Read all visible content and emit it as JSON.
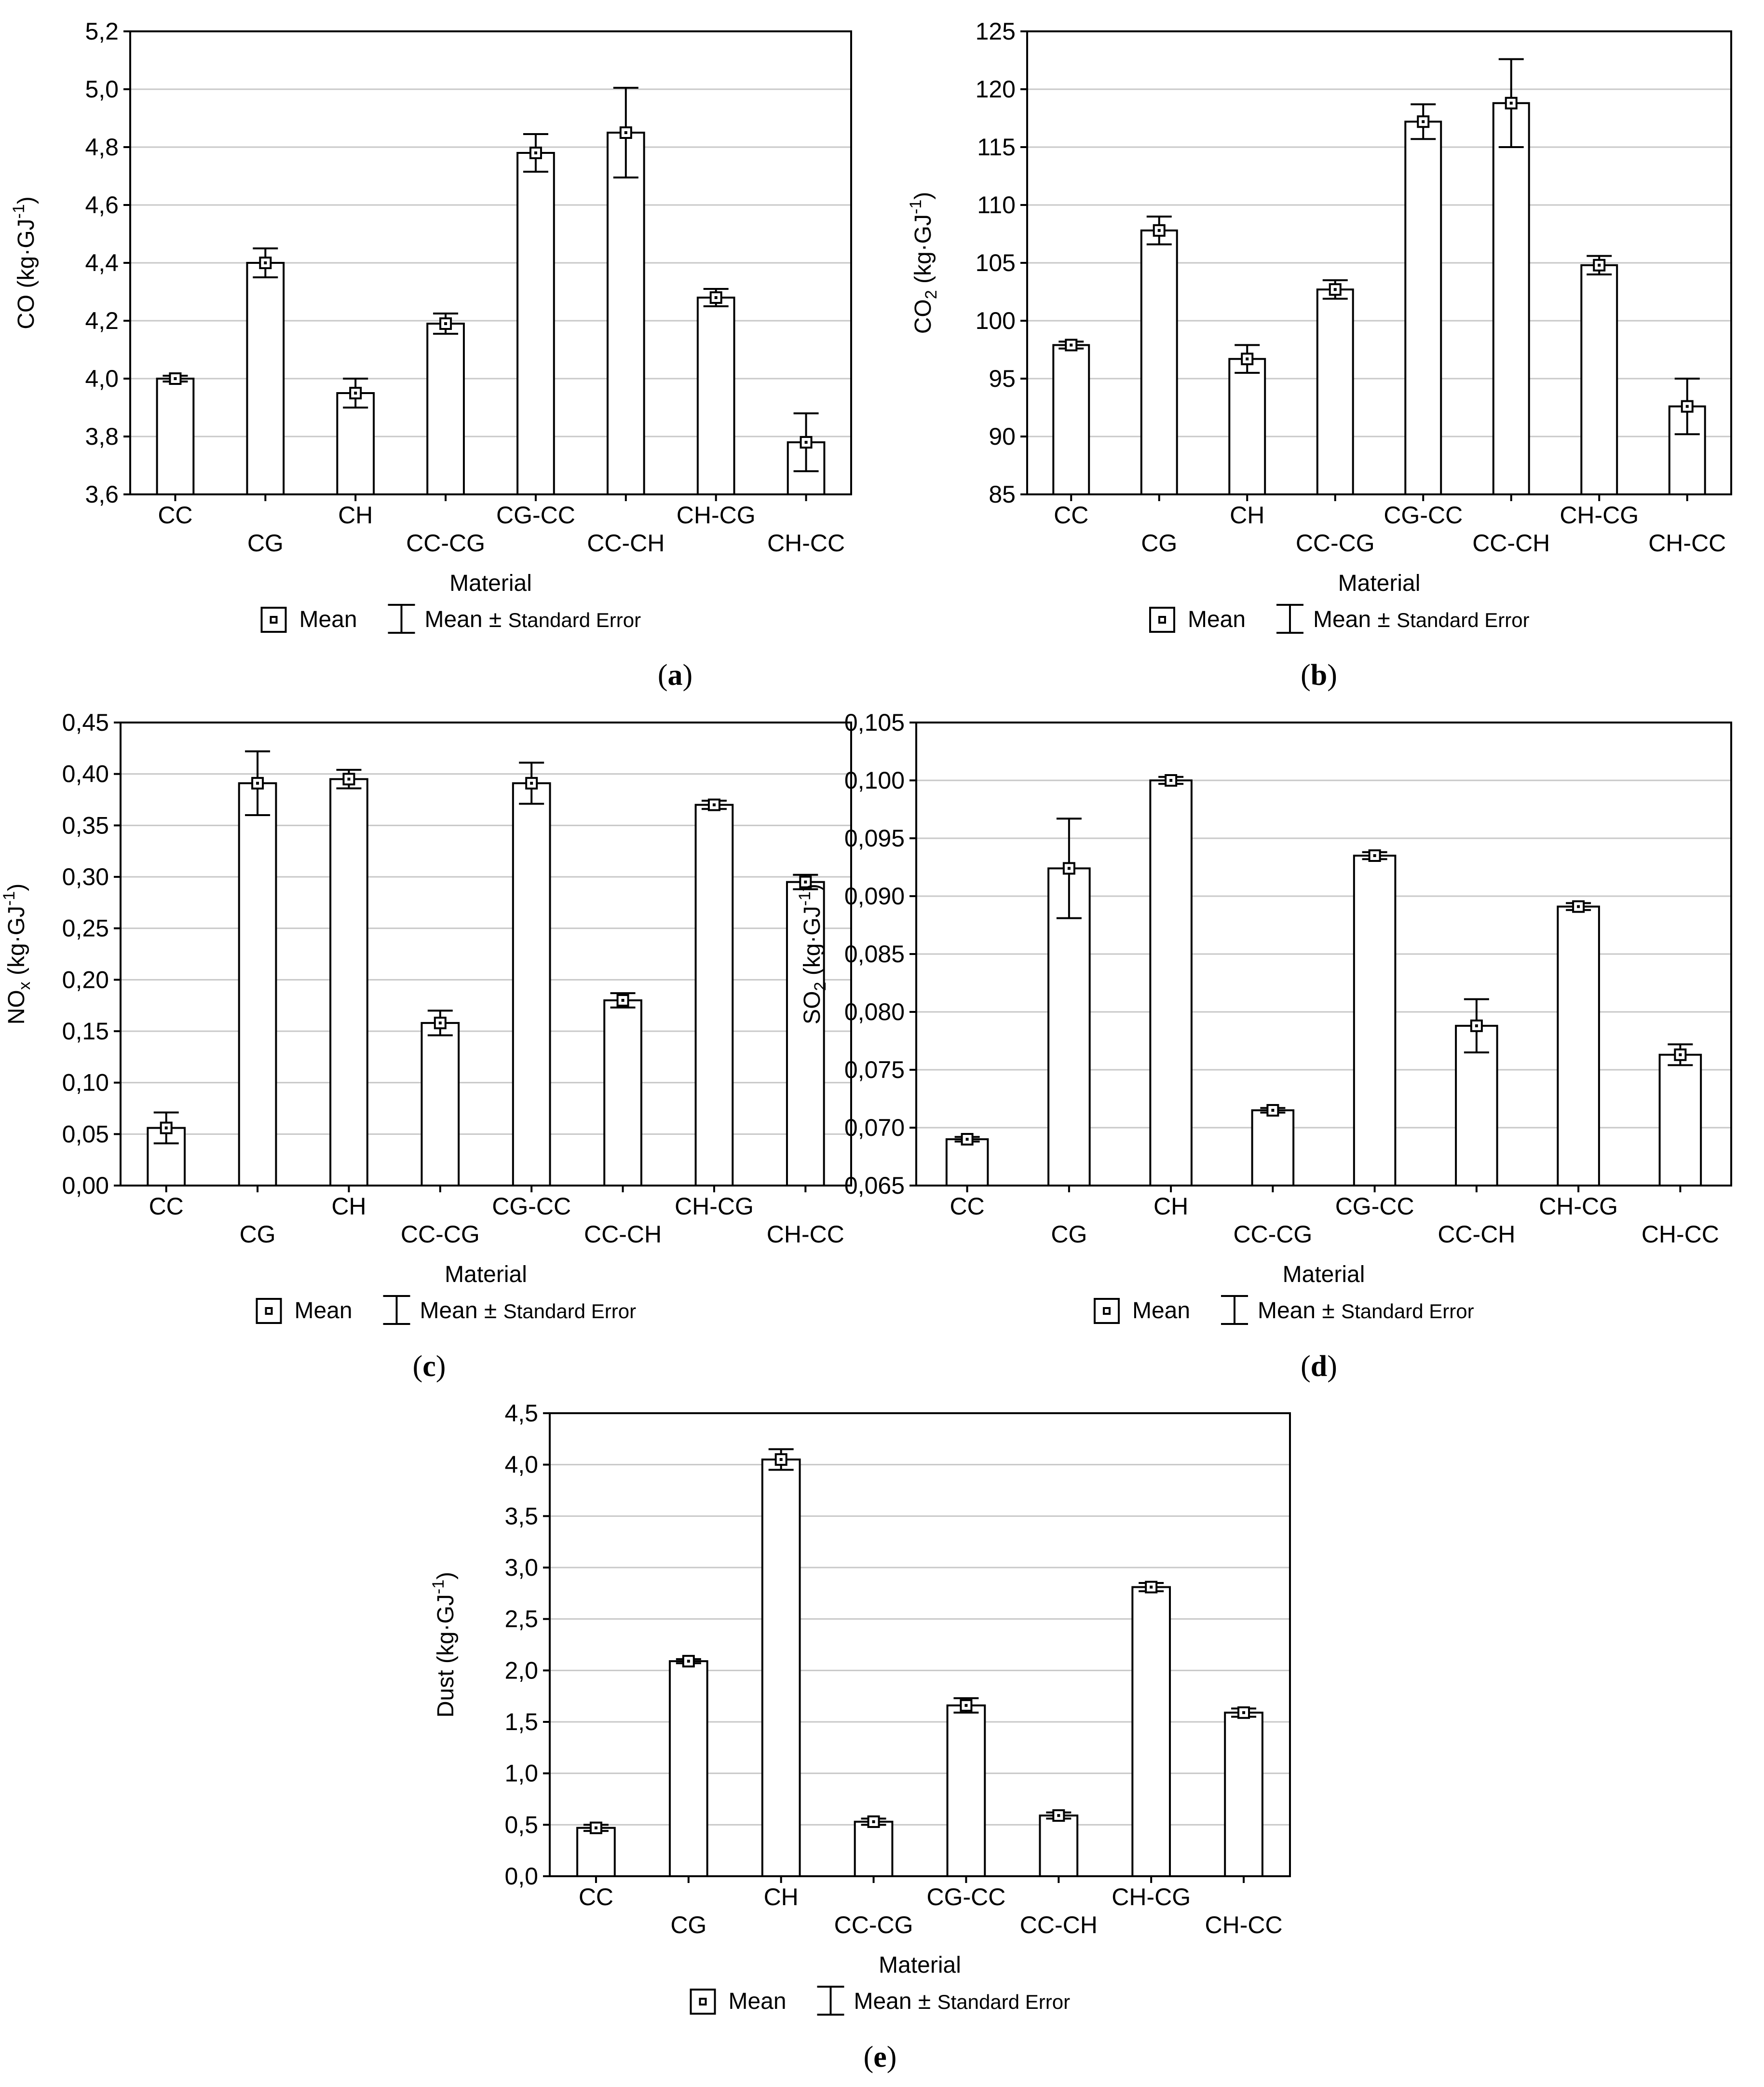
{
  "chart_data": [
    {
      "id": "a",
      "type": "bar",
      "panel_label_open": "(",
      "panel_label": "a",
      "panel_label_close": ")",
      "categories": [
        "CC",
        "CG",
        "CH",
        "CC-CG",
        "CG-CC",
        "CC-CH",
        "CH-CG",
        "CH-CC"
      ],
      "values": [
        4.0,
        4.4,
        3.95,
        4.19,
        4.78,
        4.85,
        4.28,
        3.78
      ],
      "errors": [
        0.01,
        0.05,
        0.05,
        0.035,
        0.065,
        0.155,
        0.03,
        0.1
      ],
      "ylim": [
        3.6,
        5.2
      ],
      "yticks": [
        "3,6",
        "3,8",
        "4,0",
        "4,2",
        "4,4",
        "4,6",
        "4,8",
        "5,0",
        "5,2"
      ],
      "ylabel_main": "CO (kg·GJ",
      "ylabel_sup": "-1",
      "ylabel_sub": "",
      "ylabel_end": ")",
      "xlabel": "Material"
    },
    {
      "id": "b",
      "type": "bar",
      "panel_label_open": "(",
      "panel_label": "b",
      "panel_label_close": ")",
      "categories": [
        "CC",
        "CG",
        "CH",
        "CC-CG",
        "CG-CC",
        "CC-CH",
        "CH-CG",
        "CH-CC"
      ],
      "values": [
        97.9,
        107.8,
        96.7,
        102.7,
        117.2,
        118.8,
        104.8,
        92.6
      ],
      "errors": [
        0.3,
        1.2,
        1.2,
        0.8,
        1.5,
        3.8,
        0.8,
        2.4
      ],
      "ylim": [
        85,
        125
      ],
      "yticks": [
        "85",
        "90",
        "95",
        "100",
        "105",
        "110",
        "115",
        "120",
        "125"
      ],
      "ylabel_main": "CO",
      "ylabel_sub": "2",
      "ylabel_main2": " (kg·GJ",
      "ylabel_sup": "-1",
      "ylabel_end": ")",
      "xlabel": "Material"
    },
    {
      "id": "c",
      "type": "bar",
      "panel_label_open": "(",
      "panel_label": "c",
      "panel_label_close": ")",
      "categories": [
        "CC",
        "CG",
        "CH",
        "CC-CG",
        "CG-CC",
        "CC-CH",
        "CH-CG",
        "CH-CC"
      ],
      "values": [
        0.056,
        0.391,
        0.395,
        0.158,
        0.391,
        0.18,
        0.37,
        0.295
      ],
      "errors": [
        0.015,
        0.031,
        0.009,
        0.012,
        0.02,
        0.007,
        0.004,
        0.007
      ],
      "ylim": [
        0.0,
        0.45
      ],
      "yticks": [
        "0,00",
        "0,05",
        "0,10",
        "0,15",
        "0,20",
        "0,25",
        "0,30",
        "0,35",
        "0,40",
        "0,45"
      ],
      "ylabel_main": "NO",
      "ylabel_sub": "x",
      "ylabel_main2": " (kg·GJ",
      "ylabel_sup": "-1",
      "ylabel_end": ")",
      "xlabel": "Material"
    },
    {
      "id": "d",
      "type": "bar",
      "panel_label_open": "(",
      "panel_label": "d",
      "panel_label_close": ")",
      "categories": [
        "CC",
        "CG",
        "CH",
        "CC-CG",
        "CG-CC",
        "CC-CH",
        "CH-CG",
        "CH-CC"
      ],
      "values": [
        0.069,
        0.0924,
        0.1,
        0.0715,
        0.0935,
        0.0788,
        0.0891,
        0.0763
      ],
      "errors": [
        0.0002,
        0.0043,
        0.0003,
        0.0002,
        0.0003,
        0.0023,
        0.0003,
        0.0009
      ],
      "ylim": [
        0.065,
        0.105
      ],
      "yticks": [
        "0,065",
        "0,070",
        "0,075",
        "0,080",
        "0,085",
        "0,090",
        "0,095",
        "0,100",
        "0,105"
      ],
      "ylabel_main": "SO",
      "ylabel_sub": "2",
      "ylabel_main2": " (kg·GJ",
      "ylabel_sup": "-1",
      "ylabel_end": ")",
      "xlabel": "Material"
    },
    {
      "id": "e",
      "type": "bar",
      "panel_label_open": "(",
      "panel_label": "e",
      "panel_label_close": ")",
      "categories": [
        "CC",
        "CG",
        "CH",
        "CC-CG",
        "CG-CC",
        "CC-CH",
        "CH-CG",
        "CH-CC"
      ],
      "values": [
        0.47,
        2.09,
        4.05,
        0.53,
        1.66,
        0.59,
        2.81,
        1.59
      ],
      "errors": [
        0.03,
        0.02,
        0.1,
        0.03,
        0.07,
        0.03,
        0.04,
        0.04
      ],
      "ylim": [
        0.0,
        4.5
      ],
      "yticks": [
        "0,0",
        "0,5",
        "1,0",
        "1,5",
        "2,0",
        "2,5",
        "3,0",
        "3,5",
        "4,0",
        "4,5"
      ],
      "ylabel_main": "Dust (kg·GJ",
      "ylabel_sup": "-1",
      "ylabel_sub": "",
      "ylabel_end": ")",
      "xlabel": "Material"
    }
  ],
  "legend": {
    "mean": "Mean",
    "mean_se_prefix": "Mean ± ",
    "mean_se_suffix": "Standard Error"
  }
}
